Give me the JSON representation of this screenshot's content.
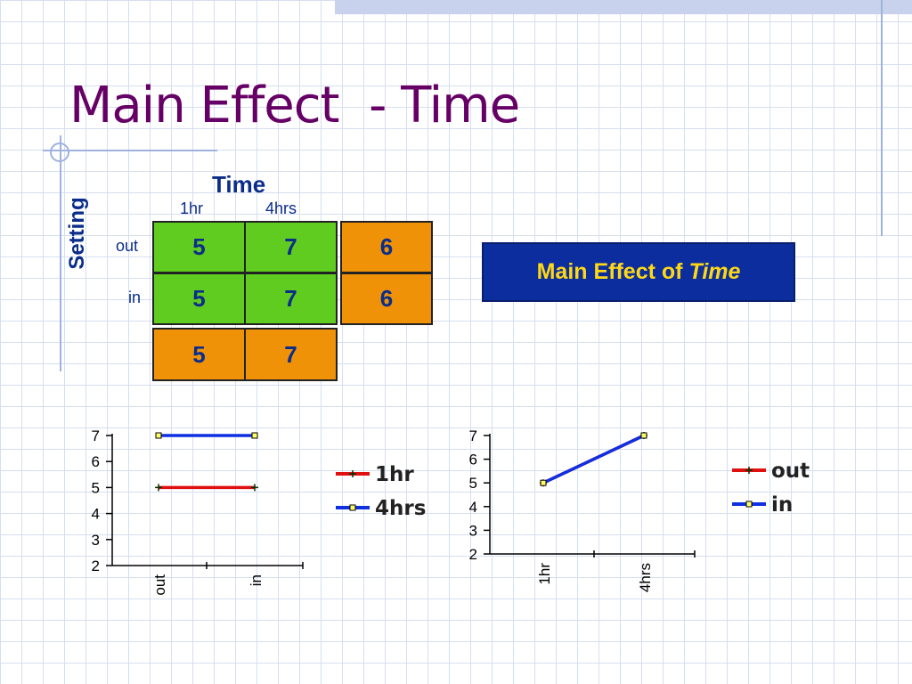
{
  "slide": {
    "title": "Main Effect  - Time",
    "badge_prefix": "Main Effect of",
    "badge_emph": "Time"
  },
  "table": {
    "col_header": "Time",
    "col_labels": [
      "1hr",
      "4hrs"
    ],
    "row_header": "Setting",
    "row_labels": [
      "out",
      "in"
    ],
    "cells": [
      [
        "5",
        "7"
      ],
      [
        "5",
        "7"
      ]
    ],
    "row_means": [
      "6",
      "6"
    ],
    "col_means": [
      "5",
      "7"
    ]
  },
  "colors": {
    "title": "#660066",
    "text_blue": "#0b2d8a",
    "cell_green": "#5fcc1f",
    "cell_orange": "#ef9208",
    "badge_bg": "#0b2d9e",
    "badge_text": "#ffd815",
    "series_red": "#e01010",
    "series_blue": "#1030e0"
  },
  "chart_data": [
    {
      "type": "line",
      "categories": [
        "out",
        "in"
      ],
      "series": [
        {
          "name": "1hr",
          "values": [
            5,
            5
          ],
          "color": "#e01010",
          "marker": "plus"
        },
        {
          "name": "4hrs",
          "values": [
            7,
            7
          ],
          "color": "#1030e0",
          "marker": "square"
        }
      ],
      "ylim": [
        2,
        7
      ],
      "yticks": [
        "2",
        "3",
        "4",
        "5",
        "6",
        "7"
      ],
      "grid": false,
      "legend": "right"
    },
    {
      "type": "line",
      "categories": [
        "1hr",
        "4hrs"
      ],
      "series": [
        {
          "name": "out",
          "values": [
            5,
            7
          ],
          "color": "#e01010",
          "marker": "plus"
        },
        {
          "name": "in",
          "values": [
            5,
            7
          ],
          "color": "#1030e0",
          "marker": "square"
        }
      ],
      "ylim": [
        2,
        7
      ],
      "yticks": [
        "2",
        "3",
        "4",
        "5",
        "6",
        "7"
      ],
      "grid": false,
      "legend": "right"
    }
  ]
}
